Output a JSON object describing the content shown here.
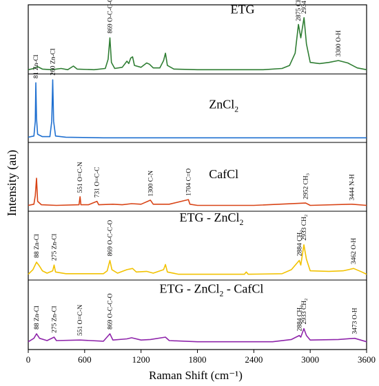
{
  "chart_data": {
    "type": "line",
    "xlabel": "Raman Shift (cm⁻¹)",
    "ylabel": "Intensity (au)",
    "xlim": [
      0,
      3600
    ],
    "xticks": [
      0,
      600,
      1200,
      1800,
      2400,
      3000,
      3600
    ],
    "grid": false,
    "series": [
      {
        "name": "ETG",
        "color": "#2e7d32",
        "points": [
          [
            0,
            0.03
          ],
          [
            60,
            0.05
          ],
          [
            100,
            0.08
          ],
          [
            150,
            0.04
          ],
          [
            250,
            0.03
          ],
          [
            350,
            0.05
          ],
          [
            420,
            0.03
          ],
          [
            480,
            0.09
          ],
          [
            520,
            0.04
          ],
          [
            700,
            0.03
          ],
          [
            820,
            0.05
          ],
          [
            850,
            0.2
          ],
          [
            869,
            0.55
          ],
          [
            885,
            0.15
          ],
          [
            920,
            0.05
          ],
          [
            1000,
            0.07
          ],
          [
            1050,
            0.17
          ],
          [
            1070,
            0.13
          ],
          [
            1090,
            0.22
          ],
          [
            1110,
            0.24
          ],
          [
            1130,
            0.1
          ],
          [
            1200,
            0.07
          ],
          [
            1260,
            0.14
          ],
          [
            1290,
            0.12
          ],
          [
            1330,
            0.06
          ],
          [
            1400,
            0.06
          ],
          [
            1440,
            0.18
          ],
          [
            1460,
            0.3
          ],
          [
            1480,
            0.1
          ],
          [
            1550,
            0.04
          ],
          [
            1800,
            0.03
          ],
          [
            2200,
            0.03
          ],
          [
            2500,
            0.03
          ],
          [
            2700,
            0.05
          ],
          [
            2780,
            0.1
          ],
          [
            2840,
            0.3
          ],
          [
            2875,
            0.77
          ],
          [
            2900,
            0.55
          ],
          [
            2934,
            0.88
          ],
          [
            2960,
            0.45
          ],
          [
            3000,
            0.15
          ],
          [
            3100,
            0.13
          ],
          [
            3200,
            0.15
          ],
          [
            3300,
            0.18
          ],
          [
            3400,
            0.14
          ],
          [
            3500,
            0.06
          ],
          [
            3600,
            0.03
          ]
        ]
      },
      {
        "name": "ZnCl2",
        "color": "#1e6fd0",
        "points": [
          [
            0,
            0.03
          ],
          [
            60,
            0.05
          ],
          [
            75,
            0.3
          ],
          [
            81,
            0.95
          ],
          [
            88,
            0.35
          ],
          [
            100,
            0.08
          ],
          [
            150,
            0.04
          ],
          [
            230,
            0.04
          ],
          [
            250,
            0.3
          ],
          [
            260,
            1.0
          ],
          [
            270,
            0.3
          ],
          [
            290,
            0.05
          ],
          [
            400,
            0.03
          ],
          [
            800,
            0.02
          ],
          [
            1200,
            0.02
          ],
          [
            1800,
            0.02
          ],
          [
            2400,
            0.02
          ],
          [
            3000,
            0.02
          ],
          [
            3600,
            0.02
          ]
        ]
      },
      {
        "name": "CafCl",
        "color": "#d84315",
        "points": [
          [
            0,
            0.03
          ],
          [
            60,
            0.05
          ],
          [
            75,
            0.2
          ],
          [
            88,
            0.5
          ],
          [
            100,
            0.1
          ],
          [
            140,
            0.04
          ],
          [
            300,
            0.03
          ],
          [
            540,
            0.04
          ],
          [
            551,
            0.18
          ],
          [
            560,
            0.04
          ],
          [
            640,
            0.04
          ],
          [
            731,
            0.1
          ],
          [
            750,
            0.04
          ],
          [
            900,
            0.05
          ],
          [
            1000,
            0.04
          ],
          [
            1100,
            0.06
          ],
          [
            1200,
            0.05
          ],
          [
            1300,
            0.12
          ],
          [
            1330,
            0.05
          ],
          [
            1500,
            0.05
          ],
          [
            1704,
            0.13
          ],
          [
            1720,
            0.05
          ],
          [
            1800,
            0.03
          ],
          [
            2400,
            0.03
          ],
          [
            2952,
            0.07
          ],
          [
            3000,
            0.03
          ],
          [
            3444,
            0.05
          ],
          [
            3600,
            0.03
          ]
        ]
      },
      {
        "name": "ETG - ZnCl2",
        "color": "#f2c200",
        "points": [
          [
            0,
            0.04
          ],
          [
            50,
            0.12
          ],
          [
            88,
            0.25
          ],
          [
            120,
            0.18
          ],
          [
            150,
            0.1
          ],
          [
            200,
            0.06
          ],
          [
            260,
            0.1
          ],
          [
            275,
            0.2
          ],
          [
            290,
            0.08
          ],
          [
            400,
            0.05
          ],
          [
            800,
            0.05
          ],
          [
            840,
            0.1
          ],
          [
            869,
            0.28
          ],
          [
            890,
            0.12
          ],
          [
            950,
            0.06
          ],
          [
            1050,
            0.12
          ],
          [
            1110,
            0.14
          ],
          [
            1150,
            0.08
          ],
          [
            1260,
            0.09
          ],
          [
            1330,
            0.06
          ],
          [
            1440,
            0.12
          ],
          [
            1460,
            0.21
          ],
          [
            1480,
            0.08
          ],
          [
            1600,
            0.04
          ],
          [
            2300,
            0.04
          ],
          [
            2320,
            0.08
          ],
          [
            2340,
            0.04
          ],
          [
            2700,
            0.05
          ],
          [
            2800,
            0.12
          ],
          [
            2884,
            0.28
          ],
          [
            2900,
            0.2
          ],
          [
            2933,
            0.55
          ],
          [
            2960,
            0.3
          ],
          [
            3000,
            0.1
          ],
          [
            3200,
            0.09
          ],
          [
            3350,
            0.1
          ],
          [
            3462,
            0.14
          ],
          [
            3550,
            0.08
          ],
          [
            3600,
            0.04
          ]
        ]
      },
      {
        "name": "ETG - ZnCl2 - CafCl",
        "color": "#8e24aa",
        "points": [
          [
            0,
            0.04
          ],
          [
            60,
            0.1
          ],
          [
            88,
            0.18
          ],
          [
            120,
            0.1
          ],
          [
            200,
            0.06
          ],
          [
            275,
            0.12
          ],
          [
            300,
            0.06
          ],
          [
            551,
            0.07
          ],
          [
            800,
            0.05
          ],
          [
            869,
            0.18
          ],
          [
            900,
            0.07
          ],
          [
            1050,
            0.09
          ],
          [
            1100,
            0.11
          ],
          [
            1200,
            0.07
          ],
          [
            1300,
            0.08
          ],
          [
            1460,
            0.12
          ],
          [
            1500,
            0.06
          ],
          [
            1800,
            0.04
          ],
          [
            2600,
            0.04
          ],
          [
            2800,
            0.08
          ],
          [
            2884,
            0.15
          ],
          [
            2900,
            0.12
          ],
          [
            2933,
            0.27
          ],
          [
            2960,
            0.15
          ],
          [
            3000,
            0.07
          ],
          [
            3300,
            0.08
          ],
          [
            3473,
            0.1
          ],
          [
            3600,
            0.04
          ]
        ]
      }
    ],
    "labels": [
      {
        "text": "ETG",
        "series": 0,
        "x": 2280,
        "y": 0.95,
        "size": 18
      },
      {
        "text": "ZnCl",
        "sub": "2",
        "series": 1,
        "x": 2080,
        "y": 0.52,
        "size": 18
      },
      {
        "text": "CafCl",
        "series": 2,
        "x": 2080,
        "y": 0.5,
        "size": 18
      },
      {
        "text": "ETG - ZnCl",
        "sub": "2",
        "series": 3,
        "x": 1950,
        "y": 0.95,
        "size": 18
      },
      {
        "text": "ETG - ZnCl",
        "sub": "2",
        "after": " - CafCl",
        "series": 4,
        "x": 1950,
        "y": 0.9,
        "size": 18
      }
    ],
    "annotations": [
      {
        "series": 0,
        "x": 869,
        "y": 0.6,
        "text": "869 O-C-C-O"
      },
      {
        "series": 0,
        "x": 2875,
        "y": 0.8,
        "text": "2875 CH",
        "sub": "2"
      },
      {
        "series": 0,
        "x": 2934,
        "y": 0.92,
        "text": "2934 CH",
        "sub": "2"
      },
      {
        "series": 0,
        "x": 3300,
        "y": 0.22,
        "text": "3300 O-H"
      },
      {
        "series": 1,
        "x": 81,
        "y": 1.0,
        "text": "81 Zn-Cl"
      },
      {
        "series": 1,
        "x": 260,
        "y": 1.05,
        "text": "260 Zn-Cl"
      },
      {
        "series": 2,
        "x": 551,
        "y": 0.22,
        "text": "551 O=C-N"
      },
      {
        "series": 2,
        "x": 731,
        "y": 0.14,
        "text": "731 O=C-C"
      },
      {
        "series": 2,
        "x": 1300,
        "y": 0.16,
        "text": "1300 C-N"
      },
      {
        "series": 2,
        "x": 1704,
        "y": 0.17,
        "text": "1704 C=O"
      },
      {
        "series": 2,
        "x": 2952,
        "y": 0.11,
        "text": "2952 CH",
        "sub": "3"
      },
      {
        "series": 2,
        "x": 3444,
        "y": 0.09,
        "text": "3444 N-H"
      },
      {
        "series": 3,
        "x": 88,
        "y": 0.3,
        "text": "88 Zn-Cl"
      },
      {
        "series": 3,
        "x": 275,
        "y": 0.25,
        "text": "275 Zn-Cl"
      },
      {
        "series": 3,
        "x": 869,
        "y": 0.33,
        "text": "869 O-C-C-O"
      },
      {
        "series": 3,
        "x": 2884,
        "y": 0.33,
        "text": "2884 CH",
        "sub": "2"
      },
      {
        "series": 3,
        "x": 2933,
        "y": 0.6,
        "text": "2933 CH",
        "sub": "2"
      },
      {
        "series": 3,
        "x": 3462,
        "y": 0.19,
        "text": "3462 O-H"
      },
      {
        "series": 4,
        "x": 88,
        "y": 0.23,
        "text": "88 Zn-Cl"
      },
      {
        "series": 4,
        "x": 275,
        "y": 0.17,
        "text": "275 Zn-Cl"
      },
      {
        "series": 4,
        "x": 551,
        "y": 0.12,
        "text": "551 O=C-N"
      },
      {
        "series": 4,
        "x": 869,
        "y": 0.23,
        "text": "869 O-C-C-O"
      },
      {
        "series": 4,
        "x": 2884,
        "y": 0.2,
        "text": "2884 CH",
        "sub": "2"
      },
      {
        "series": 4,
        "x": 2933,
        "y": 0.32,
        "text": "2933 CH",
        "sub": "2"
      },
      {
        "series": 4,
        "x": 3473,
        "y": 0.15,
        "text": "3473 O-H"
      }
    ]
  }
}
